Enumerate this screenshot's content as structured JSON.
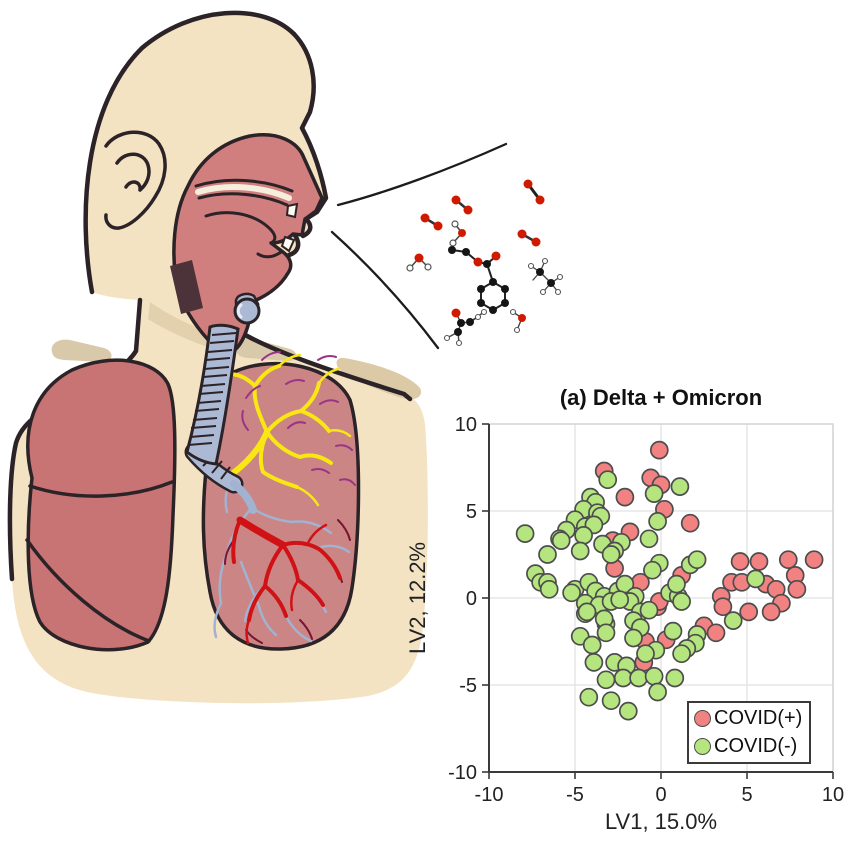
{
  "figure": {
    "background": "#ffffff",
    "description_elements": [
      "human-respiratory-system-illustration",
      "exhaled-breath-molecules",
      "scatter-plot"
    ]
  },
  "illustration": {
    "name": "human-respiratory-system-illustration",
    "elements": [
      "head-profile",
      "ear",
      "nasal-oral-cavity",
      "pharynx",
      "trachea",
      "bronchi",
      "left-lung",
      "right-lung",
      "bronchial-tree-yellow",
      "bronchial-tree-red",
      "pulmonary-vessels",
      "collarbones",
      "exhaled-breath-lines"
    ],
    "molecule_icons": [
      "oxygen-molecule",
      "oxygen-molecule",
      "oxygen-molecule",
      "oxygen-molecule",
      "small-voc-molecule",
      "small-voc-molecule",
      "aromatic-voc-molecule",
      "small-voc-molecule",
      "small-voc-molecule",
      "small-voc-molecule"
    ],
    "colors": {
      "skin": "#f3e3c3",
      "outline": "#2b2327",
      "cavity": "#d07e7e",
      "left_lung": "#c87474",
      "right_lung": "#cb8584",
      "trachea": "#abb9d4",
      "bronchial_yellow": "#f8e712",
      "bronchial_red": "#d01216",
      "vessels": "#a2b2d1",
      "accent_purple": "#9b3488"
    }
  },
  "chart": {
    "title": "(a) Delta + Omicron",
    "xlabel": "LV1, 15.0%",
    "ylabel": "LV2, 12.2%",
    "x_tick_labels": [
      "-10",
      "-5",
      "0",
      "5",
      "10"
    ],
    "y_tick_labels": [
      "10",
      "5",
      "0",
      "-5",
      "-10"
    ],
    "legend": [
      {
        "label": "COVID(+)"
      },
      {
        "label": "COVID(-)"
      }
    ]
  },
  "chart_data": {
    "type": "scatter",
    "title": "(a) Delta + Omicron",
    "xlabel": "LV1, 15.0%",
    "ylabel": "LV2, 12.2%",
    "xlim": [
      -10,
      10
    ],
    "ylim": [
      -10,
      10
    ],
    "x_ticks": [
      -10,
      -5,
      0,
      5,
      10
    ],
    "y_ticks": [
      -10,
      -5,
      0,
      5,
      10
    ],
    "grid": true,
    "legend_position": "lower right",
    "marker": {
      "radius_px": 8.5,
      "edge_color": "#4d4d4d",
      "edge_width": 1.7
    },
    "series": [
      {
        "name": "COVID(+)",
        "color": "#f28181",
        "points": [
          [
            -0.1,
            8.5
          ],
          [
            -3.3,
            7.3
          ],
          [
            -0.6,
            6.9
          ],
          [
            0.0,
            6.5
          ],
          [
            -2.1,
            5.8
          ],
          [
            0.2,
            5.1
          ],
          [
            1.7,
            4.3
          ],
          [
            -1.8,
            3.8
          ],
          [
            -2.8,
            3.3
          ],
          [
            -2.7,
            1.7
          ],
          [
            -1.2,
            0.9
          ],
          [
            1.2,
            1.3
          ],
          [
            4.6,
            2.1
          ],
          [
            5.7,
            2.1
          ],
          [
            7.4,
            2.2
          ],
          [
            8.9,
            2.2
          ],
          [
            4.1,
            0.9
          ],
          [
            4.7,
            0.9
          ],
          [
            6.1,
            0.8
          ],
          [
            6.7,
            0.5
          ],
          [
            7.8,
            1.3
          ],
          [
            7.9,
            0.5
          ],
          [
            7.0,
            -0.3
          ],
          [
            6.4,
            -0.8
          ],
          [
            5.1,
            -0.8
          ],
          [
            3.5,
            0.1
          ],
          [
            3.6,
            -0.5
          ],
          [
            2.5,
            -1.6
          ],
          [
            3.2,
            -2.0
          ],
          [
            0.3,
            -2.4
          ],
          [
            -0.9,
            -2.5
          ],
          [
            -1.0,
            -3.7
          ],
          [
            -0.2,
            -0.5
          ],
          [
            -0.1,
            -0.2
          ]
        ]
      },
      {
        "name": "COVID(-)",
        "color": "#b4e57e",
        "points": [
          [
            -3.1,
            6.8
          ],
          [
            -0.4,
            6.0
          ],
          [
            1.1,
            6.4
          ],
          [
            -4.1,
            5.8
          ],
          [
            -3.8,
            5.5
          ],
          [
            -4.5,
            5.1
          ],
          [
            -3.7,
            4.9
          ],
          [
            -3.5,
            4.7
          ],
          [
            -5.0,
            4.5
          ],
          [
            -4.4,
            4.1
          ],
          [
            -3.9,
            4.2
          ],
          [
            -5.5,
            3.9
          ],
          [
            -5.9,
            3.4
          ],
          [
            -0.2,
            4.4
          ],
          [
            -7.9,
            3.7
          ],
          [
            -6.6,
            2.5
          ],
          [
            -5.8,
            3.3
          ],
          [
            -4.5,
            3.6
          ],
          [
            -3.4,
            3.1
          ],
          [
            -4.7,
            2.7
          ],
          [
            -2.3,
            3.2
          ],
          [
            -2.7,
            2.7
          ],
          [
            -2.9,
            2.5
          ],
          [
            -0.7,
            3.4
          ],
          [
            -0.1,
            2.0
          ],
          [
            -0.5,
            1.6
          ],
          [
            1.7,
            1.9
          ],
          [
            2.1,
            2.2
          ],
          [
            -7.3,
            1.4
          ],
          [
            -7.0,
            0.9
          ],
          [
            -6.6,
            0.9
          ],
          [
            -6.5,
            0.5
          ],
          [
            -5.0,
            0.5
          ],
          [
            -4.2,
            0.9
          ],
          [
            -3.8,
            0.4
          ],
          [
            -3.3,
            0.1
          ],
          [
            -2.5,
            0.4
          ],
          [
            -2.1,
            0.8
          ],
          [
            -1.5,
            0.1
          ],
          [
            -1.8,
            -0.2
          ],
          [
            0.5,
            0.3
          ],
          [
            1.0,
            0.1
          ],
          [
            0.9,
            0.8
          ],
          [
            1.2,
            -0.2
          ],
          [
            -5.2,
            0.3
          ],
          [
            -4.4,
            -0.3
          ],
          [
            -3.6,
            -0.4
          ],
          [
            -2.9,
            -0.2
          ],
          [
            -2.4,
            -0.1
          ],
          [
            -4.4,
            -0.9
          ],
          [
            -1.2,
            -0.8
          ],
          [
            -0.7,
            -0.7
          ],
          [
            -1.6,
            -1.3
          ],
          [
            -1.2,
            -1.7
          ],
          [
            -3.2,
            -1.5
          ],
          [
            -3.3,
            -1.2
          ],
          [
            -4.3,
            -0.8
          ],
          [
            -3.2,
            -2.0
          ],
          [
            -4.7,
            -2.2
          ],
          [
            -4.0,
            -2.7
          ],
          [
            -1.6,
            -2.3
          ],
          [
            0.7,
            -1.9
          ],
          [
            2.1,
            -2.1
          ],
          [
            2.0,
            -2.6
          ],
          [
            1.5,
            -2.9
          ],
          [
            1.2,
            -3.2
          ],
          [
            -0.3,
            -3.0
          ],
          [
            -0.9,
            -3.2
          ],
          [
            -2.7,
            -3.7
          ],
          [
            -2.0,
            -3.9
          ],
          [
            -3.9,
            -3.7
          ],
          [
            -2.2,
            -4.6
          ],
          [
            -1.3,
            -4.6
          ],
          [
            -0.4,
            -4.5
          ],
          [
            0.8,
            -4.6
          ],
          [
            -3.2,
            -4.7
          ],
          [
            -0.2,
            -5.4
          ],
          [
            -4.2,
            -5.7
          ],
          [
            -2.9,
            -5.9
          ],
          [
            -1.9,
            -6.5
          ],
          [
            5.5,
            1.1
          ],
          [
            4.2,
            -1.3
          ]
        ]
      }
    ]
  }
}
